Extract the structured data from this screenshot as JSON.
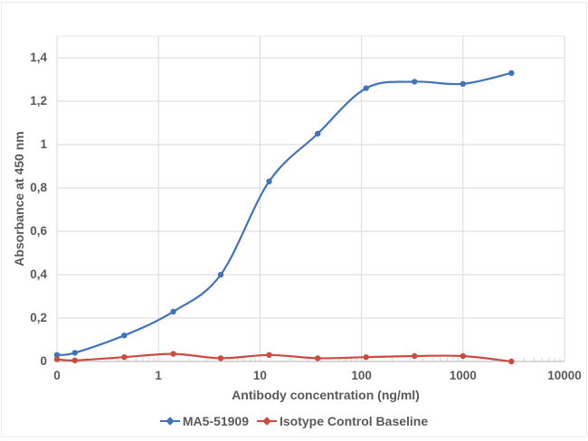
{
  "frame": {
    "border_color": "#EBEBEB"
  },
  "colors": {
    "grid": "#D9D9D9",
    "axis_line": "#BFBFBF",
    "minor_tick": "#D3D3D3",
    "plot_top_border": "#E6E6E6",
    "text": "#595959",
    "series_blue": "#4173BC",
    "series_red": "#CC4A3F"
  },
  "chart_data": {
    "type": "line",
    "title": "",
    "xlabel": "Antibody concentration (ng/ml)",
    "ylabel": "Absorbance at 450 nm",
    "x_scale": "log",
    "grid": true,
    "legend_position": "bottom",
    "x_axis": {
      "min_plotted": 0.1,
      "max": 10000,
      "ticks": [
        {
          "v": 0.1,
          "label": "0"
        },
        {
          "v": 1,
          "label": "1"
        },
        {
          "v": 10,
          "label": "10"
        },
        {
          "v": 100,
          "label": "100"
        },
        {
          "v": 1000,
          "label": "1000"
        },
        {
          "v": 10000,
          "label": "10000"
        }
      ]
    },
    "y_axis": {
      "min": 0,
      "max": 1.5,
      "major_unit": 0.2,
      "ticks": [
        {
          "v": 0,
          "label": "0"
        },
        {
          "v": 0.2,
          "label": "0,2"
        },
        {
          "v": 0.4,
          "label": "0,4"
        },
        {
          "v": 0.6,
          "label": "0,6"
        },
        {
          "v": 0.8,
          "label": "0,8"
        },
        {
          "v": 1,
          "label": "1"
        },
        {
          "v": 1.2,
          "label": "1,2"
        },
        {
          "v": 1.4,
          "label": "1,4"
        }
      ]
    },
    "series": [
      {
        "name": "MA5-51909",
        "color": "#4173BC",
        "x": [
          0,
          0.15,
          0.46,
          1.4,
          4.1,
          12.3,
          37,
          111,
          333,
          1000,
          3000
        ],
        "values": [
          0.03,
          0.04,
          0.12,
          0.23,
          0.4,
          0.83,
          1.05,
          1.26,
          1.29,
          1.28,
          1.33
        ]
      },
      {
        "name": "Isotype Control Baseline",
        "color": "#CC4A3F",
        "x": [
          0,
          0.15,
          0.46,
          1.4,
          4.1,
          12.3,
          37,
          111,
          333,
          1000,
          3000
        ],
        "values": [
          0.01,
          0.005,
          0.02,
          0.035,
          0.015,
          0.03,
          0.015,
          0.02,
          0.025,
          0.025,
          0.0
        ]
      }
    ]
  }
}
